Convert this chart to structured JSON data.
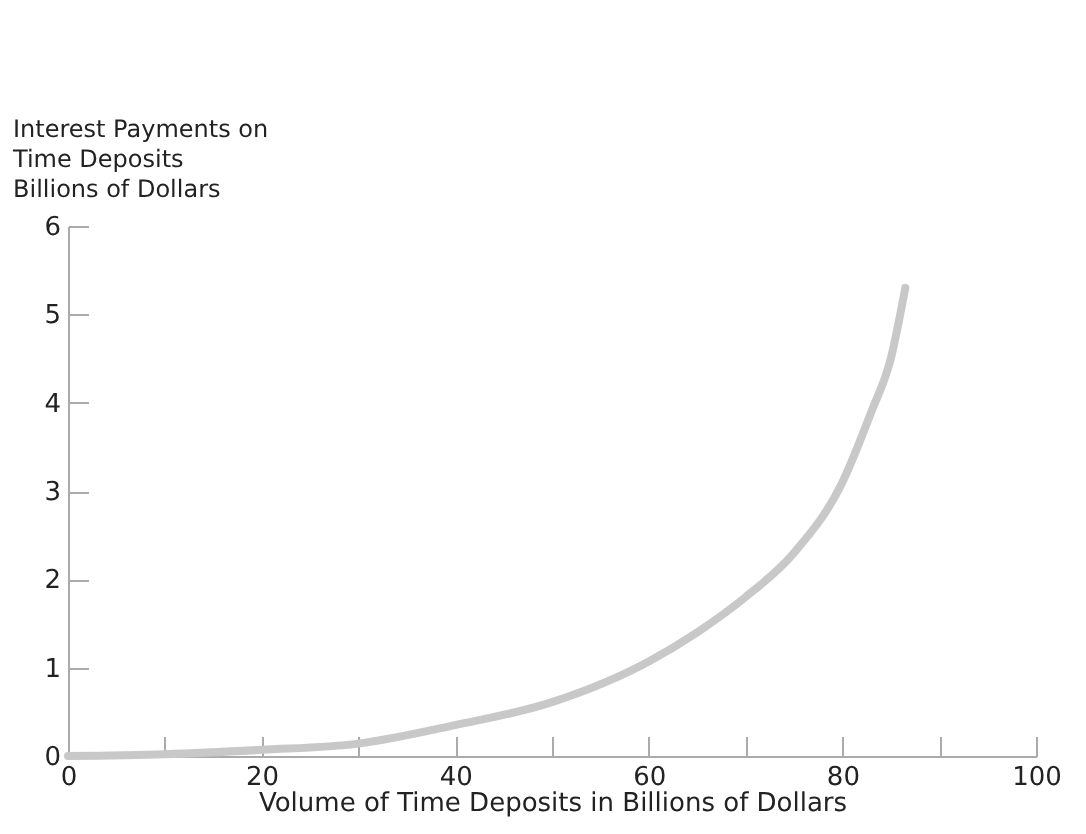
{
  "chart_data": {
    "type": "line",
    "xlabel": "Volume of Time Deposits in Billions of Dollars",
    "ylabel": "Interest Payments on\nTime Deposits\nBillions of Dollars",
    "x": [
      0,
      10,
      20,
      30,
      40,
      50,
      60,
      65,
      70,
      75,
      80,
      83,
      85,
      86.5
    ],
    "series": [
      {
        "color": "#c8c8c8",
        "values": [
          0,
          0.02,
          0.07,
          0.14,
          0.35,
          0.61,
          1.07,
          1.4,
          1.8,
          2.3,
          3.1,
          3.9,
          4.5,
          5.3
        ]
      }
    ],
    "xlim": [
      0,
      100
    ],
    "xticks": [
      0,
      {
        "value": 10,
        "label": null
      },
      20,
      {
        "value": 30,
        "label": null
      },
      40,
      {
        "value": 50,
        "label": null
      },
      60,
      {
        "value": 70,
        "label": null
      },
      80,
      {
        "value": 90,
        "label": null
      },
      100
    ],
    "ylim": [
      0,
      6
    ],
    "yticks": [
      0,
      1,
      2,
      3,
      4,
      5,
      6
    ],
    "marker": "none",
    "line_style": "solid"
  }
}
